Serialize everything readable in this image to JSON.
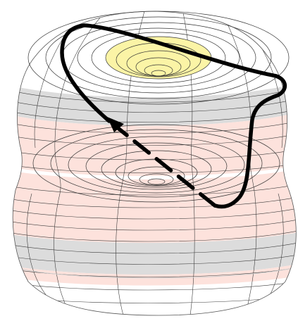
{
  "figure": {
    "kind": "3d-surface-with-closed-loop",
    "colors": {
      "background": "#ffffff",
      "mesh_line": "#3c3c3c",
      "band_gray": "#dcdcdc",
      "band_pink": "#fde2dc",
      "cap_yellow": "#fbf4a6",
      "loop_stroke": "#000000"
    },
    "icons": [
      "loop-direction-arrowhead-icon"
    ]
  }
}
